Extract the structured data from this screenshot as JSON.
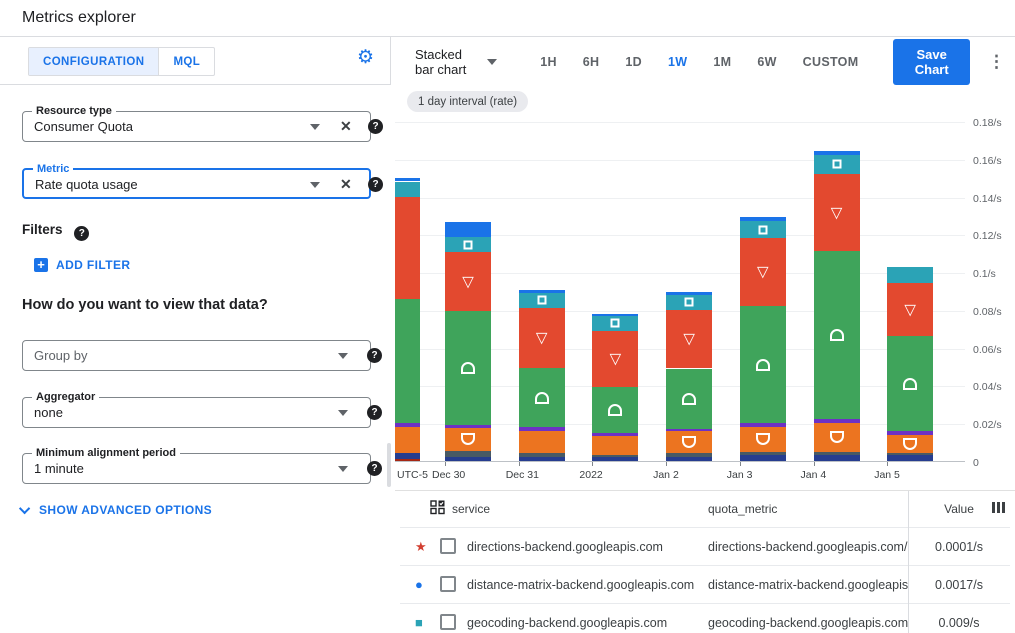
{
  "header": {
    "title": "Metrics explorer"
  },
  "left_panel": {
    "tabs": [
      {
        "label": "CONFIGURATION",
        "active": true
      },
      {
        "label": "MQL",
        "active": false
      }
    ],
    "resource_type": {
      "label": "Resource type",
      "value": "Consumer Quota"
    },
    "metric": {
      "label": "Metric",
      "value": "Rate quota usage"
    },
    "filters_label": "Filters",
    "add_filter_label": "ADD FILTER",
    "view_question": "How do you want to view that data?",
    "group_by": {
      "placeholder": "Group by"
    },
    "aggregator": {
      "label": "Aggregator",
      "value": "none"
    },
    "min_alignment": {
      "label": "Minimum alignment period",
      "value": "1 minute"
    },
    "show_advanced_label": "SHOW ADVANCED OPTIONS"
  },
  "toolbar": {
    "chart_type_label": "Stacked bar chart",
    "time_ranges": [
      "1H",
      "6H",
      "1D",
      "1W",
      "1M",
      "6W",
      "CUSTOM"
    ],
    "active_time_range": "1W",
    "save_button_label": "Save Chart",
    "interval_chip": "1 day interval (rate)"
  },
  "chart_data": {
    "type": "bar",
    "stacked": true,
    "unit": "/s",
    "timezone_label": "UTC-5",
    "ylim": [
      0,
      0.18
    ],
    "grid": true,
    "legend_position": "table-below",
    "y_ticks": [
      "0.18/s",
      "0.16/s",
      "0.14/s",
      "0.12/s",
      "0.1/s",
      "0.08/s",
      "0.06/s",
      "0.04/s",
      "0.02/s",
      "0"
    ],
    "x_labels": [
      "Dec 30",
      "Dec 31",
      "2022",
      "Jan 2",
      "Jan 3",
      "Jan 4",
      "Jan 5"
    ],
    "stack_order": [
      "crimson",
      "navy",
      "slate",
      "orange",
      "purple",
      "green",
      "red",
      "teal",
      "blue"
    ],
    "series_colors": {
      "crimson": "#a52714",
      "navy": "#263d8f",
      "slate": "#485a64",
      "orange": "#ec7420",
      "purple": "#6d31c4",
      "green": "#3fa45b",
      "red": "#e3492f",
      "teal": "#2ba3b6",
      "blue": "#1a73e8"
    },
    "markers": {
      "teal": "square",
      "red": "tri",
      "green": "arch",
      "orange": "cup"
    },
    "bars": [
      {
        "label": "",
        "clipped": true,
        "values": {
          "crimson": 0.001,
          "navy": 0.003,
          "slate": 0,
          "orange": 0.014,
          "purple": 0.002,
          "green": 0.066,
          "red": 0.054,
          "teal": 0.008,
          "blue": 0.002
        },
        "show_markers": []
      },
      {
        "label": "Dec 30",
        "values": {
          "crimson": 0,
          "navy": 0.002,
          "slate": 0.0035,
          "orange": 0.012,
          "purple": 0.0015,
          "green": 0.0605,
          "red": 0.031,
          "teal": 0.008,
          "blue": 0.008
        },
        "show_markers": [
          "teal",
          "red",
          "green",
          "orange"
        ]
      },
      {
        "label": "Dec 31",
        "values": {
          "crimson": 0,
          "navy": 0.002,
          "slate": 0.002,
          "orange": 0.012,
          "purple": 0.002,
          "green": 0.031,
          "red": 0.032,
          "teal": 0.008,
          "blue": 0.0015
        },
        "show_markers": [
          "teal",
          "red",
          "green"
        ]
      },
      {
        "label": "2022",
        "values": {
          "crimson": 0,
          "navy": 0.002,
          "slate": 0.001,
          "orange": 0.01,
          "purple": 0.002,
          "green": 0.024,
          "red": 0.03,
          "teal": 0.008,
          "blue": 0.001
        },
        "show_markers": [
          "teal",
          "red",
          "green"
        ]
      },
      {
        "label": "Jan 2",
        "values": {
          "crimson": 0,
          "navy": 0.002,
          "slate": 0.002,
          "orange": 0.012,
          "purple": 0.001,
          "green": 0.032,
          "red": 0.031,
          "teal": 0.008,
          "blue": 0.0015
        },
        "show_markers": [
          "teal",
          "red",
          "green",
          "orange"
        ]
      },
      {
        "label": "Jan 3",
        "values": {
          "crimson": 0,
          "navy": 0.003,
          "slate": 0.002,
          "orange": 0.013,
          "purple": 0.002,
          "green": 0.062,
          "red": 0.036,
          "teal": 0.009,
          "blue": 0.002
        },
        "show_markers": [
          "teal",
          "red",
          "green",
          "orange"
        ]
      },
      {
        "label": "Jan 4",
        "values": {
          "crimson": 0,
          "navy": 0.003,
          "slate": 0.002,
          "orange": 0.015,
          "purple": 0.002,
          "green": 0.089,
          "red": 0.041,
          "teal": 0.01,
          "blue": 0.002
        },
        "show_markers": [
          "teal",
          "red",
          "green",
          "orange"
        ]
      },
      {
        "label": "Jan 5",
        "values": {
          "crimson": 0,
          "navy": 0.003,
          "slate": 0.001,
          "orange": 0.01,
          "purple": 0.002,
          "green": 0.05,
          "red": 0.028,
          "teal": 0.0085,
          "blue": 0
        },
        "show_markers": [
          "red",
          "green",
          "orange"
        ]
      }
    ]
  },
  "table": {
    "columns": {
      "service": "service",
      "quota_metric": "quota_metric",
      "value": "Value"
    },
    "rows": [
      {
        "marker": "star",
        "marker_color": "#d23f31",
        "marker_glyph": "★",
        "service": "directions-backend.googleapis.com",
        "quota_metric": "directions-backend.googleapis.com/billabl",
        "value": "0.0001/s"
      },
      {
        "marker": "circle",
        "marker_color": "#1a73e8",
        "marker_glyph": "●",
        "service": "distance-matrix-backend.googleapis.com",
        "quota_metric": "distance-matrix-backend.googleapis.com/l",
        "value": "0.0017/s"
      },
      {
        "marker": "square",
        "marker_color": "#2ba3b6",
        "marker_glyph": "■",
        "service": "geocoding-backend.googleapis.com",
        "quota_metric": "geocoding-backend.googleapis.com/billab",
        "value": "0.009/s"
      }
    ]
  },
  "colors": {
    "accent": "#1a73e8",
    "chip_bg": "#e9eaee",
    "border": "#dadce0"
  }
}
